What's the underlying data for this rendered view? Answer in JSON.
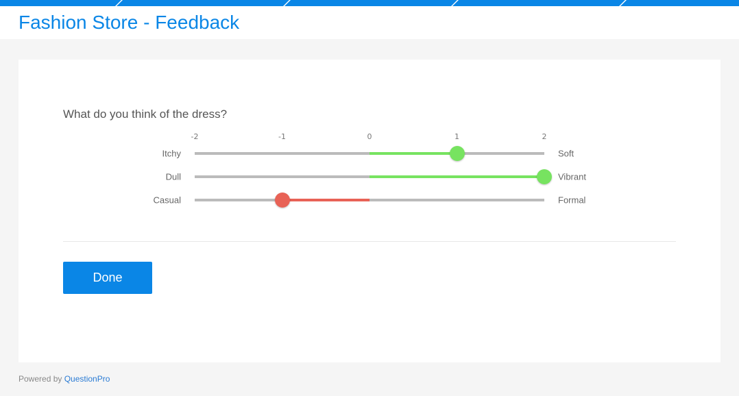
{
  "header": {
    "title": "Fashion Store - Feedback"
  },
  "question": {
    "text": "What do you think of the dress?"
  },
  "scale": {
    "min": -2,
    "max": 2,
    "ticks": [
      "-2",
      "-1",
      "0",
      "1",
      "2"
    ]
  },
  "rows": [
    {
      "left": "Itchy",
      "right": "Soft",
      "value": 1
    },
    {
      "left": "Dull",
      "right": "Vibrant",
      "value": 2
    },
    {
      "left": "Casual",
      "right": "Formal",
      "value": -1
    }
  ],
  "colors": {
    "accent": "#0a86e6",
    "positive": "#77e360",
    "negative": "#e86256",
    "track": "#bbbbbb"
  },
  "done_label": "Done",
  "footer": {
    "prefix": "Powered by ",
    "link": "QuestionPro"
  }
}
